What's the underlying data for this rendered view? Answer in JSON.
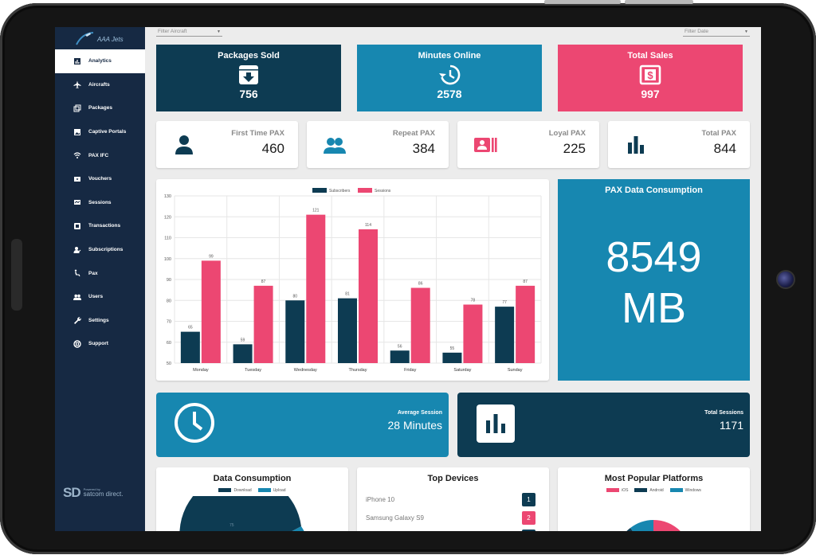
{
  "app": {
    "brand": "AAA Jets",
    "powered_by": "Powered by",
    "powered_company": "satcom direct.",
    "powered_logo": "SD"
  },
  "sidebar": {
    "items": [
      {
        "label": "Analytics",
        "icon": "analytics-icon",
        "active": true
      },
      {
        "label": "Aircrafts",
        "icon": "airplane-icon"
      },
      {
        "label": "Packages",
        "icon": "packages-icon"
      },
      {
        "label": "Captive Portals",
        "icon": "portal-icon"
      },
      {
        "label": "PAX IFC",
        "icon": "wifi-icon"
      },
      {
        "label": "Vouchers",
        "icon": "voucher-icon"
      },
      {
        "label": "Sessions",
        "icon": "sessions-icon"
      },
      {
        "label": "Transactions",
        "icon": "transactions-icon"
      },
      {
        "label": "Subscriptions",
        "icon": "subscriptions-icon"
      },
      {
        "label": "Pax",
        "icon": "pax-icon"
      },
      {
        "label": "Users",
        "icon": "users-icon"
      },
      {
        "label": "Settings",
        "icon": "wrench-icon"
      },
      {
        "label": "Support",
        "icon": "support-icon"
      }
    ]
  },
  "filters": {
    "aircraft_placeholder": "Filter Aircraft",
    "date_placeholder": "Filter Date"
  },
  "kpis": {
    "packages_sold": {
      "label": "Packages Sold",
      "value": "756"
    },
    "minutes_online": {
      "label": "Minutes Online",
      "value": "2578"
    },
    "total_sales": {
      "label": "Total Sales",
      "value": "997"
    }
  },
  "pax": {
    "first_time": {
      "label": "First Time PAX",
      "value": "460"
    },
    "repeat": {
      "label": "Repeat PAX",
      "value": "384"
    },
    "loyal": {
      "label": "Loyal PAX",
      "value": "225"
    },
    "total": {
      "label": "Total PAX",
      "value": "844"
    }
  },
  "consumption": {
    "title": "PAX Data Consumption",
    "value": "8549",
    "unit": "MB"
  },
  "sessions": {
    "average_label": "Average Session",
    "average_value": "28 Minutes",
    "total_label": "Total Sessions",
    "total_value": "1171"
  },
  "bottom": {
    "data_consumption": {
      "title": "Data Consumption",
      "legend": [
        "Download",
        "Upload"
      ],
      "visible_value": "75"
    },
    "top_devices": {
      "title": "Top Devices",
      "items": [
        {
          "name": "iPhone 10",
          "rank": "1"
        },
        {
          "name": "Samsung Galaxy S9",
          "rank": "2"
        }
      ]
    },
    "platforms": {
      "title": "Most Popular Platforms",
      "legend": [
        "iOS",
        "Android",
        "Windows"
      ]
    }
  },
  "colors": {
    "dark": "#0d3b52",
    "blue": "#1787b0",
    "pink": "#ec4772",
    "sidebar": "#162943"
  },
  "chart_data": {
    "type": "bar",
    "categories": [
      "Monday",
      "Tuesday",
      "Wednesday",
      "Thursday",
      "Friday",
      "Saturday",
      "Sunday"
    ],
    "series": [
      {
        "name": "Subscribers",
        "color": "#0d3b52",
        "values": [
          65,
          59,
          80,
          81,
          56,
          55,
          77
        ]
      },
      {
        "name": "Sessions",
        "color": "#ec4772",
        "values": [
          99,
          87,
          121,
          114,
          86,
          78,
          87
        ]
      }
    ],
    "ylim": [
      50,
      130
    ],
    "yticks": [
      50,
      60,
      70,
      80,
      90,
      100,
      110,
      120,
      130
    ],
    "grid": true,
    "legend": "top"
  }
}
